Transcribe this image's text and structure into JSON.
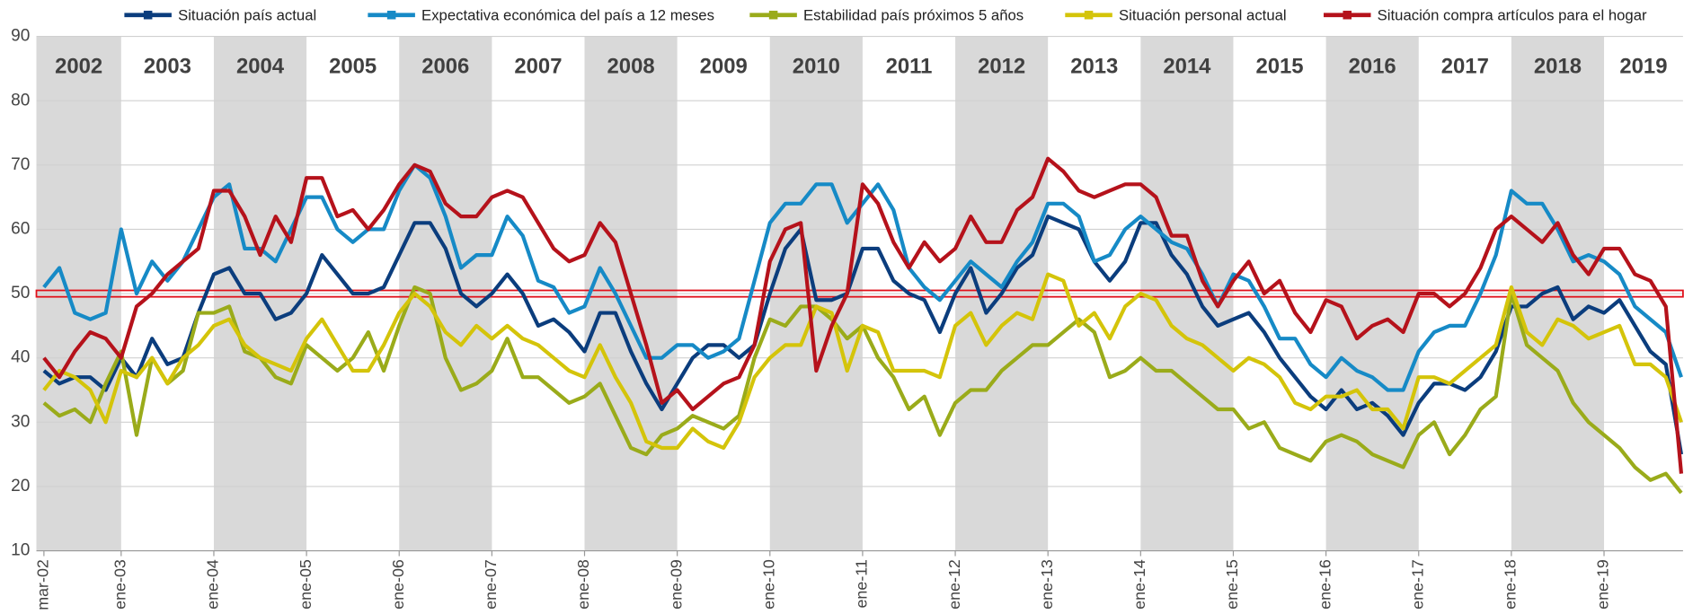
{
  "chart_data": {
    "type": "line",
    "categories": [
      "mar-02",
      null,
      null,
      null,
      null,
      "ene-03",
      null,
      null,
      null,
      null,
      null,
      "ene-04",
      null,
      null,
      null,
      null,
      null,
      "ene-05",
      null,
      null,
      null,
      null,
      null,
      "ene-06",
      null,
      null,
      null,
      null,
      null,
      "ene-07",
      null,
      null,
      null,
      null,
      null,
      "ene-08",
      null,
      null,
      null,
      null,
      null,
      "ene-09",
      null,
      null,
      null,
      null,
      null,
      "ene-10",
      null,
      null,
      null,
      null,
      null,
      "ene-11",
      null,
      null,
      null,
      null,
      null,
      "ene-12",
      null,
      null,
      null,
      null,
      null,
      "ene-13",
      null,
      null,
      null,
      null,
      null,
      "ene-14",
      null,
      null,
      null,
      null,
      null,
      "ene-15",
      null,
      null,
      null,
      null,
      null,
      "ene-16",
      null,
      null,
      null,
      null,
      null,
      "ene-17",
      null,
      null,
      null,
      null,
      null,
      "ene-18",
      null,
      null,
      null,
      null,
      null,
      "ene-19",
      null,
      null,
      null,
      null,
      null
    ],
    "series": [
      {
        "name": "Situación país actual",
        "color": "#0b3d7d",
        "values": [
          38,
          36,
          37,
          37,
          35,
          40,
          37,
          43,
          39,
          40,
          47,
          53,
          54,
          50,
          50,
          46,
          47,
          50,
          56,
          53,
          50,
          50,
          51,
          56,
          61,
          61,
          57,
          50,
          48,
          50,
          53,
          50,
          45,
          46,
          44,
          41,
          47,
          47,
          41,
          36,
          32,
          36,
          40,
          42,
          42,
          40,
          42,
          50,
          57,
          60,
          49,
          49,
          50,
          57,
          57,
          52,
          50,
          49,
          44,
          50,
          54,
          47,
          50,
          54,
          56,
          62,
          61,
          60,
          55,
          52,
          55,
          61,
          61,
          56,
          53,
          48,
          45,
          46,
          47,
          44,
          40,
          37,
          34,
          32,
          35,
          32,
          33,
          31,
          28,
          33,
          36,
          36,
          35,
          37,
          41,
          48,
          48,
          50,
          51,
          46,
          48,
          47,
          49,
          45,
          41,
          39,
          25
        ]
      },
      {
        "name": "Expectativa económica del país a 12 meses",
        "color": "#168ac6",
        "values": [
          51,
          54,
          47,
          46,
          47,
          60,
          50,
          55,
          52,
          55,
          60,
          65,
          67,
          57,
          57,
          55,
          60,
          65,
          65,
          60,
          58,
          60,
          60,
          66,
          70,
          68,
          62,
          54,
          56,
          56,
          62,
          59,
          52,
          51,
          47,
          48,
          54,
          50,
          45,
          40,
          40,
          42,
          42,
          40,
          41,
          43,
          52,
          61,
          64,
          64,
          67,
          67,
          61,
          64,
          67,
          63,
          54,
          51,
          49,
          52,
          55,
          53,
          51,
          55,
          58,
          64,
          64,
          62,
          55,
          56,
          60,
          62,
          60,
          58,
          57,
          53,
          48,
          53,
          52,
          48,
          43,
          43,
          39,
          37,
          40,
          38,
          37,
          35,
          35,
          41,
          44,
          45,
          45,
          50,
          56,
          66,
          64,
          64,
          60,
          55,
          56,
          55,
          53,
          48,
          46,
          44,
          37
        ]
      },
      {
        "name": "Estabilidad país próximos 5 años",
        "color": "#9aab1a",
        "values": [
          33,
          31,
          32,
          30,
          36,
          41,
          28,
          40,
          36,
          38,
          47,
          47,
          48,
          41,
          40,
          37,
          36,
          42,
          40,
          38,
          40,
          44,
          38,
          45,
          51,
          50,
          40,
          35,
          36,
          38,
          43,
          37,
          37,
          35,
          33,
          34,
          36,
          31,
          26,
          25,
          28,
          29,
          31,
          30,
          29,
          31,
          40,
          46,
          45,
          48,
          48,
          46,
          43,
          45,
          40,
          37,
          32,
          34,
          28,
          33,
          35,
          35,
          38,
          40,
          42,
          42,
          44,
          46,
          44,
          37,
          38,
          40,
          38,
          38,
          36,
          34,
          32,
          32,
          29,
          30,
          26,
          25,
          24,
          27,
          28,
          27,
          25,
          24,
          23,
          28,
          30,
          25,
          28,
          32,
          34,
          50,
          42,
          40,
          38,
          33,
          30,
          28,
          26,
          23,
          21,
          22,
          19
        ]
      },
      {
        "name": "Situación personal actual",
        "color": "#d4c40a",
        "values": [
          35,
          38,
          37,
          35,
          30,
          38,
          37,
          40,
          36,
          40,
          42,
          45,
          46,
          42,
          40,
          39,
          38,
          43,
          46,
          42,
          38,
          38,
          42,
          47,
          50,
          48,
          44,
          42,
          45,
          43,
          45,
          43,
          42,
          40,
          38,
          37,
          42,
          37,
          33,
          27,
          26,
          26,
          29,
          27,
          26,
          30,
          37,
          40,
          42,
          42,
          48,
          47,
          38,
          45,
          44,
          38,
          38,
          38,
          37,
          45,
          47,
          42,
          45,
          47,
          46,
          53,
          52,
          45,
          47,
          43,
          48,
          50,
          49,
          45,
          43,
          42,
          40,
          38,
          40,
          39,
          37,
          33,
          32,
          34,
          34,
          35,
          32,
          32,
          29,
          37,
          37,
          36,
          38,
          40,
          42,
          51,
          44,
          42,
          46,
          45,
          43,
          44,
          45,
          39,
          39,
          37,
          30
        ]
      },
      {
        "name": "Situación compra artículos para el hogar",
        "color": "#b5121b",
        "values": [
          40,
          37,
          41,
          44,
          43,
          40,
          48,
          50,
          53,
          55,
          57,
          66,
          66,
          62,
          56,
          62,
          58,
          68,
          68,
          62,
          63,
          60,
          63,
          67,
          70,
          69,
          64,
          62,
          62,
          65,
          66,
          65,
          61,
          57,
          55,
          56,
          61,
          58,
          50,
          42,
          33,
          35,
          32,
          34,
          36,
          37,
          42,
          55,
          60,
          61,
          38,
          45,
          50,
          67,
          64,
          58,
          54,
          58,
          55,
          57,
          62,
          58,
          58,
          63,
          65,
          71,
          69,
          66,
          65,
          66,
          67,
          67,
          65,
          59,
          59,
          52,
          48,
          52,
          55,
          50,
          52,
          47,
          44,
          49,
          48,
          43,
          45,
          46,
          44,
          50,
          50,
          48,
          50,
          54,
          60,
          62,
          60,
          58,
          61,
          56,
          53,
          57,
          57,
          53,
          52,
          48,
          22
        ]
      }
    ],
    "year_bands": [
      "2002",
      "2003",
      "2004",
      "2005",
      "2006",
      "2007",
      "2008",
      "2009",
      "2010",
      "2011",
      "2012",
      "2013",
      "2014",
      "2015",
      "2016",
      "2017",
      "2018",
      "2019"
    ],
    "reference_line": {
      "value": 50,
      "color": "#e0101a"
    },
    "ylim": [
      10,
      90
    ],
    "yticks": [
      10,
      20,
      30,
      40,
      50,
      60,
      70,
      80,
      90
    ],
    "grid": true
  }
}
